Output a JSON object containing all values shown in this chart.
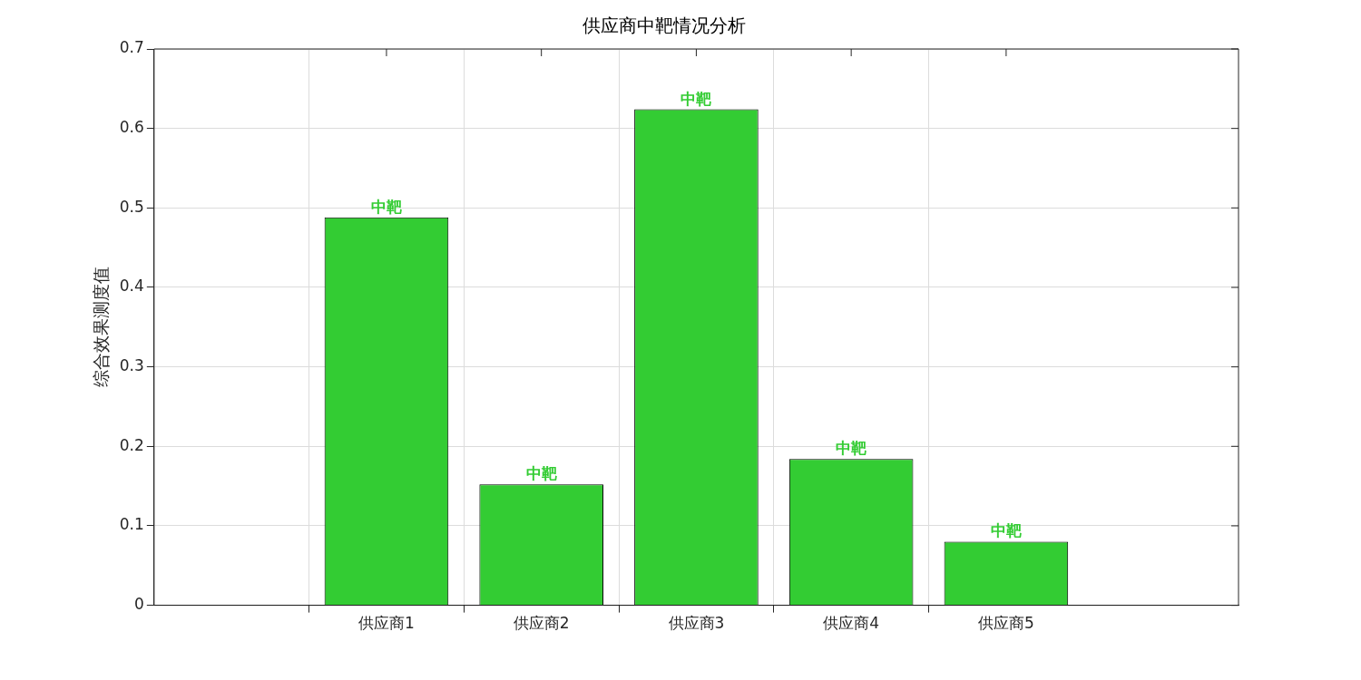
{
  "chart_data": {
    "type": "bar",
    "title": "供应商中靶情况分析",
    "ylabel": "综合效果测度值",
    "categories": [
      null,
      "供应商1",
      "供应商2",
      "供应商3",
      "供应商4",
      "供应商5",
      null
    ],
    "series": [
      {
        "color": "#33cc33",
        "values": [
          null,
          0.488,
          0.152,
          0.624,
          0.184,
          0.08,
          null
        ],
        "value_labels": [
          null,
          "中靶",
          "中靶",
          "中靶",
          "中靶",
          "中靶",
          null
        ]
      }
    ],
    "ylim": [
      0,
      0.7
    ],
    "yticks": [
      0,
      0.1,
      0.2,
      0.3,
      0.4,
      0.5,
      0.6,
      0.7
    ],
    "grid": true,
    "legend": false
  }
}
